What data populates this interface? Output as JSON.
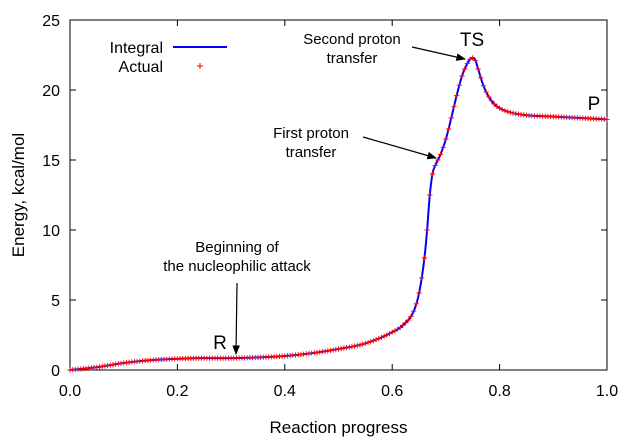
{
  "chart_data": {
    "type": "line",
    "xlabel": "Reaction progress",
    "ylabel": "Energy, kcal/mol",
    "xlim": [
      0,
      1
    ],
    "ylim": [
      0,
      25
    ],
    "xticks": [
      0.0,
      0.2,
      0.4,
      0.6,
      0.8,
      1.0
    ],
    "xtick_labels": [
      "0.0",
      "0.2",
      "0.4",
      "0.6",
      "0.8",
      "1.0"
    ],
    "yticks": [
      0,
      5,
      10,
      15,
      20,
      25
    ],
    "ytick_labels": [
      "0",
      "5",
      "10",
      "15",
      "20",
      "25"
    ],
    "grid": false,
    "legend": {
      "position": "top-left",
      "entries": [
        "Integral",
        "Actual"
      ]
    },
    "series": [
      {
        "name": "Integral",
        "style": "line",
        "color": "#0000ff",
        "x": [
          0.0,
          0.05,
          0.1,
          0.15,
          0.2,
          0.25,
          0.3,
          0.35,
          0.4,
          0.45,
          0.5,
          0.55,
          0.6,
          0.62,
          0.64,
          0.65,
          0.66,
          0.665,
          0.67,
          0.675,
          0.68,
          0.685,
          0.69,
          0.7,
          0.71,
          0.72,
          0.73,
          0.74,
          0.745,
          0.75,
          0.755,
          0.76,
          0.77,
          0.78,
          0.79,
          0.8,
          0.82,
          0.85,
          0.9,
          0.95,
          1.0
        ],
        "y": [
          0.0,
          0.2,
          0.5,
          0.7,
          0.8,
          0.85,
          0.85,
          0.9,
          1.0,
          1.2,
          1.5,
          1.9,
          2.7,
          3.2,
          4.2,
          5.5,
          8.0,
          10.0,
          12.5,
          14.0,
          14.6,
          15.0,
          15.4,
          16.5,
          18.0,
          19.6,
          21.0,
          21.9,
          22.2,
          22.3,
          22.1,
          21.5,
          20.3,
          19.5,
          19.0,
          18.7,
          18.4,
          18.2,
          18.1,
          18.0,
          17.9
        ]
      },
      {
        "name": "Actual",
        "style": "markers",
        "marker": "+",
        "color": "#ff0000",
        "sample_step": 0.005
      }
    ],
    "annotations": [
      {
        "text": [
          "Beginning of",
          "the nucleophilic attack"
        ],
        "points_to": [
          0.305,
          0.9
        ]
      },
      {
        "text": [
          "First proton",
          "transfer"
        ],
        "points_to": [
          0.69,
          14.8
        ]
      },
      {
        "text": [
          "Second proton",
          "transfer"
        ],
        "points_to": [
          0.745,
          22.3
        ]
      }
    ],
    "point_labels": [
      {
        "text": "R",
        "at": [
          0.27,
          0.9
        ]
      },
      {
        "text": "TS",
        "at": [
          0.745,
          22.3
        ]
      },
      {
        "text": "P",
        "at": [
          0.97,
          18.0
        ]
      }
    ]
  }
}
